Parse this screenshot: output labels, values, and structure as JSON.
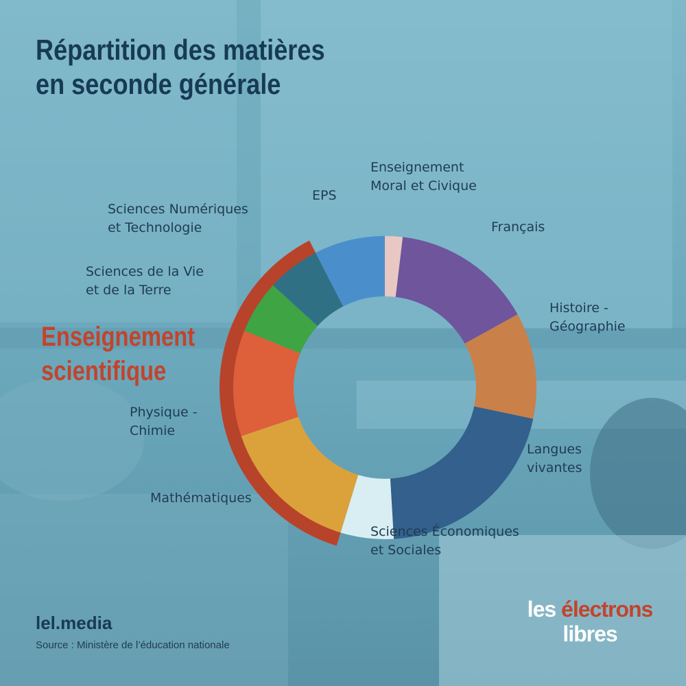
{
  "title": {
    "line1": "Répartition des matières",
    "line2": "en seconde générale"
  },
  "chart_data": {
    "type": "pie",
    "start_angle_deg": 0,
    "slices": [
      {
        "label": "Enseignement Moral et Civique",
        "value": 0.5,
        "color": "#e9c7c3"
      },
      {
        "label": "Français",
        "value": 4,
        "color": "#6e559c"
      },
      {
        "label": "Histoire - Géographie",
        "value": 3,
        "color": "#c98049"
      },
      {
        "label": "Langues vivantes",
        "value": 5.5,
        "color": "#33608c"
      },
      {
        "label": "Sciences Économiques et Sociales",
        "value": 1.5,
        "color": "#d9eef2"
      },
      {
        "label": "Mathématiques",
        "value": 4,
        "color": "#dba23c"
      },
      {
        "label": "Physique - Chimie",
        "value": 3,
        "color": "#dd603a"
      },
      {
        "label": "Sciences de la Vie et de la Terre",
        "value": 1.5,
        "color": "#3fa443"
      },
      {
        "label": "Sciences Numériques et Technologie",
        "value": 1.5,
        "color": "#2f7085"
      },
      {
        "label": "EPS",
        "value": 2,
        "color": "#4a8fcc"
      }
    ],
    "group": {
      "label": "Enseignement scientifique",
      "color": "#b8432b",
      "members": [
        "Mathématiques",
        "Physique - Chimie",
        "Sciences de la Vie et de la Terre",
        "Sciences Numériques et Technologie"
      ]
    }
  },
  "labels": {
    "emc": {
      "line1": "Enseignement",
      "line2": "Moral et Civique"
    },
    "francais": {
      "line1": "Français"
    },
    "histoire": {
      "line1": "Histoire -",
      "line2": "Géographie"
    },
    "langues": {
      "line1": "Langues",
      "line2": "vivantes"
    },
    "ses": {
      "line1": "Sciences Économiques",
      "line2": "et Sociales"
    },
    "maths": {
      "line1": "Mathématiques"
    },
    "physique": {
      "line1": "Physique -",
      "line2": "Chimie"
    },
    "svt": {
      "line1": "Sciences de la Vie",
      "line2": "et de la Terre"
    },
    "snt": {
      "line1": "Sciences Numériques",
      "line2": "et Technologie"
    },
    "eps": {
      "line1": "EPS"
    },
    "group": {
      "line1": "Enseignement",
      "line2": "scientifique"
    }
  },
  "footer": {
    "brand": "lel.media",
    "source": "Source : Ministère de l’éducation nationale"
  },
  "logo": {
    "word1": "les",
    "word2": "électrons",
    "word3": "libres"
  }
}
